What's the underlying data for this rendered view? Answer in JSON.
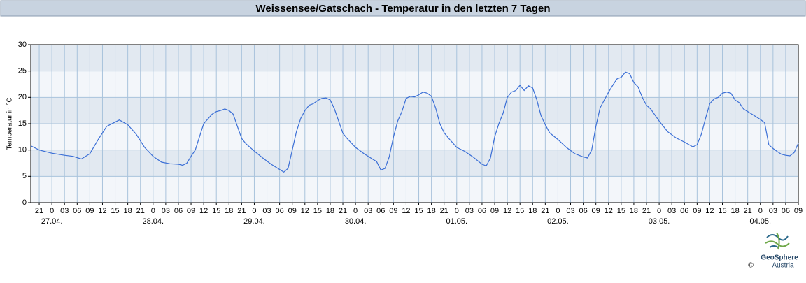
{
  "chart_data": {
    "type": "line",
    "title": "Weissensee/Gatschach - Temperatur in den letzten 7 Tagen",
    "y_label": "Temperatur in °C",
    "color": "#3b6fd6",
    "xlim": [
      -5,
      177
    ],
    "ylim": [
      0,
      30
    ],
    "yticks": [
      0,
      5,
      10,
      15,
      20,
      25,
      30
    ],
    "grid": true,
    "xticks": [
      {
        "value": -3,
        "label": "21"
      },
      {
        "value": 0,
        "label": "0"
      },
      {
        "value": 3,
        "label": "03"
      },
      {
        "value": 6,
        "label": "06"
      },
      {
        "value": 9,
        "label": "09"
      },
      {
        "value": 12,
        "label": "12"
      },
      {
        "value": 15,
        "label": "15"
      },
      {
        "value": 18,
        "label": "18"
      },
      {
        "value": 21,
        "label": "21"
      },
      {
        "value": 24,
        "label": "0"
      },
      {
        "value": 27,
        "label": "03"
      },
      {
        "value": 30,
        "label": "06"
      },
      {
        "value": 33,
        "label": "09"
      },
      {
        "value": 36,
        "label": "12"
      },
      {
        "value": 39,
        "label": "15"
      },
      {
        "value": 42,
        "label": "18"
      },
      {
        "value": 45,
        "label": "21"
      },
      {
        "value": 48,
        "label": "0"
      },
      {
        "value": 51,
        "label": "03"
      },
      {
        "value": 54,
        "label": "06"
      },
      {
        "value": 57,
        "label": "09"
      },
      {
        "value": 60,
        "label": "12"
      },
      {
        "value": 63,
        "label": "15"
      },
      {
        "value": 66,
        "label": "18"
      },
      {
        "value": 69,
        "label": "21"
      },
      {
        "value": 72,
        "label": "0"
      },
      {
        "value": 75,
        "label": "03"
      },
      {
        "value": 78,
        "label": "06"
      },
      {
        "value": 81,
        "label": "09"
      },
      {
        "value": 84,
        "label": "12"
      },
      {
        "value": 87,
        "label": "15"
      },
      {
        "value": 90,
        "label": "18"
      },
      {
        "value": 93,
        "label": "21"
      },
      {
        "value": 96,
        "label": "0"
      },
      {
        "value": 99,
        "label": "03"
      },
      {
        "value": 102,
        "label": "06"
      },
      {
        "value": 105,
        "label": "09"
      },
      {
        "value": 108,
        "label": "12"
      },
      {
        "value": 111,
        "label": "15"
      },
      {
        "value": 114,
        "label": "18"
      },
      {
        "value": 117,
        "label": "21"
      },
      {
        "value": 120,
        "label": "0"
      },
      {
        "value": 123,
        "label": "03"
      },
      {
        "value": 126,
        "label": "06"
      },
      {
        "value": 129,
        "label": "09"
      },
      {
        "value": 132,
        "label": "12"
      },
      {
        "value": 135,
        "label": "15"
      },
      {
        "value": 138,
        "label": "18"
      },
      {
        "value": 141,
        "label": "21"
      },
      {
        "value": 144,
        "label": "0"
      },
      {
        "value": 147,
        "label": "03"
      },
      {
        "value": 150,
        "label": "06"
      },
      {
        "value": 153,
        "label": "09"
      },
      {
        "value": 156,
        "label": "12"
      },
      {
        "value": 159,
        "label": "15"
      },
      {
        "value": 162,
        "label": "18"
      },
      {
        "value": 165,
        "label": "21"
      },
      {
        "value": 168,
        "label": "0"
      },
      {
        "value": 171,
        "label": "03"
      },
      {
        "value": 174,
        "label": "06"
      },
      {
        "value": 177,
        "label": "09"
      }
    ],
    "date_labels": [
      {
        "value": 0,
        "label": "27.04."
      },
      {
        "value": 24,
        "label": "28.04."
      },
      {
        "value": 48,
        "label": "29.04."
      },
      {
        "value": 72,
        "label": "30.04."
      },
      {
        "value": 96,
        "label": "01.05."
      },
      {
        "value": 120,
        "label": "02.05."
      },
      {
        "value": 144,
        "label": "03.05."
      },
      {
        "value": 168,
        "label": "04.05."
      }
    ],
    "x": [
      -5,
      -3,
      0,
      3,
      5,
      7,
      9,
      11,
      13,
      15,
      16,
      18,
      20,
      22,
      24,
      26,
      28,
      30,
      31,
      32,
      33,
      34,
      35,
      36,
      38,
      39,
      40,
      41,
      42,
      43,
      44,
      45,
      46,
      48,
      50,
      52,
      54,
      55,
      56,
      57,
      58,
      59,
      60,
      61,
      62,
      63,
      64,
      65,
      66,
      67,
      68,
      69,
      70,
      72,
      74,
      76,
      77,
      78,
      79,
      80,
      81,
      82,
      83,
      84,
      85,
      86,
      87,
      88,
      89,
      90,
      91,
      92,
      93,
      94,
      96,
      98,
      100,
      102,
      103,
      104,
      105,
      106,
      107,
      108,
      109,
      110,
      111,
      112,
      113,
      114,
      115,
      116,
      117,
      118,
      120,
      122,
      124,
      126,
      127,
      128,
      129,
      130,
      131,
      132,
      133,
      134,
      135,
      136,
      137,
      138,
      139,
      140,
      141,
      142,
      144,
      146,
      148,
      150,
      152,
      153,
      154,
      155,
      156,
      157,
      158,
      159,
      160,
      161,
      162,
      163,
      164,
      166,
      168,
      169,
      170,
      171,
      172,
      173,
      174,
      175,
      176,
      177
    ],
    "values": [
      10.8,
      10,
      9.4,
      9,
      8.8,
      8.3,
      9.3,
      12,
      14.5,
      15.3,
      15.7,
      14.8,
      13,
      10.5,
      8.8,
      7.7,
      7.4,
      7.3,
      7.1,
      7.5,
      8.8,
      10,
      12.5,
      15,
      16.8,
      17.3,
      17.5,
      17.8,
      17.5,
      16.8,
      14.5,
      12.2,
      11.2,
      9.8,
      8.5,
      7.3,
      6.3,
      5.8,
      6.5,
      10,
      13.5,
      16,
      17.5,
      18.5,
      18.8,
      19.4,
      19.8,
      19.9,
      19.5,
      17.8,
      15.5,
      13.2,
      12.2,
      10.5,
      9.3,
      8.3,
      7.8,
      6.2,
      6.5,
      8.7,
      12.5,
      15.5,
      17.3,
      19.8,
      20.2,
      20.1,
      20.5,
      21,
      20.8,
      20.2,
      18,
      15,
      13.3,
      12.3,
      10.5,
      9.7,
      8.6,
      7.3,
      7,
      8.5,
      12.5,
      15,
      17,
      20,
      21,
      21.3,
      22.3,
      21.3,
      22.2,
      21.8,
      19.5,
      16.5,
      14.8,
      13.3,
      12,
      10.5,
      9.3,
      8.7,
      8.5,
      10,
      14.5,
      18,
      19.5,
      21,
      22.3,
      23.5,
      23.8,
      24.8,
      24.5,
      22.8,
      22,
      20,
      18.5,
      17.8,
      15.5,
      13.5,
      12.3,
      11.5,
      10.6,
      11,
      13,
      16,
      18.8,
      19.7,
      20,
      20.8,
      21,
      20.8,
      19.5,
      19,
      17.8,
      16.8,
      15.8,
      15.2,
      11,
      10.3,
      9.7,
      9.2,
      9,
      8.9,
      9.5,
      11.3
    ]
  },
  "logo": {
    "name": "GeoSphere",
    "sub": "Austria",
    "copyright": "©"
  }
}
